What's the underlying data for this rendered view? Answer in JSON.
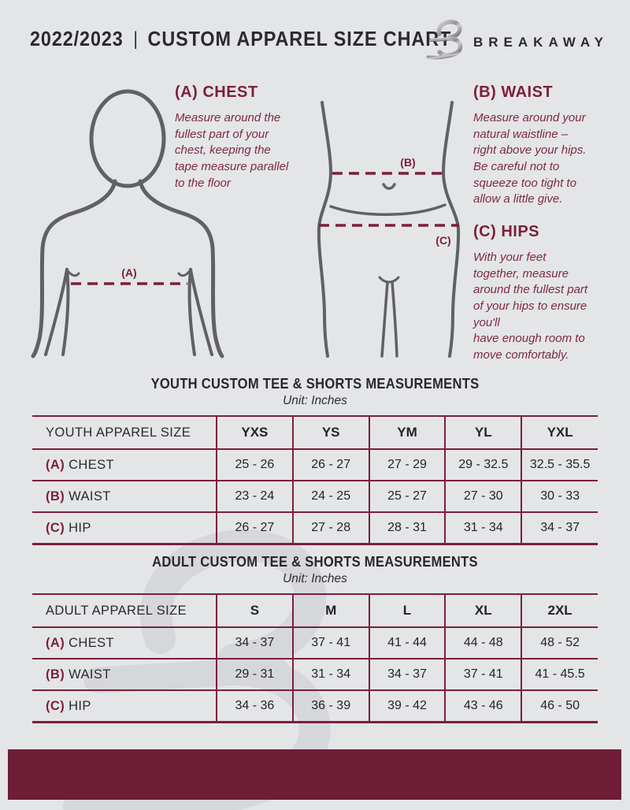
{
  "colors": {
    "accent": "#7b1f3d",
    "footer": "#6e1d37",
    "background": "#e4e5e7",
    "figure_stroke": "#606164",
    "watermark": "#d6d7da",
    "text_dark": "#2b2b2d"
  },
  "header": {
    "year": "2022/2023",
    "separator": "|",
    "title": "CUSTOM APPAREL SIZE CHART",
    "brand": "BREAKAWAY"
  },
  "guide": {
    "chest": {
      "heading": "(A) CHEST",
      "body": "Measure around the\nfullest part of your\nchest, keeping the\ntape measure parallel\nto the floor",
      "marker": "(A)"
    },
    "waist": {
      "heading": "(B) WAIST",
      "body": "Measure around your\nnatural waistline –\nright above your hips.\nBe careful not to\nsqueeze too tight to\nallow a little give.",
      "marker": "(B)"
    },
    "hips": {
      "heading": "(C) HIPS",
      "body": "With your feet\ntogether, measure\naround the fullest part\nof your hips to ensure\nyou'll\nhave enough room to\nmove comfortably.",
      "marker": "(C)"
    }
  },
  "tables": {
    "youth": {
      "title": "YOUTH CUSTOM TEE & SHORTS MEASUREMENTS",
      "unit": "Unit: Inches",
      "size_header": "YOUTH APPAREL SIZE",
      "sizes": [
        "YXS",
        "YS",
        "YM",
        "YL",
        "YXL"
      ],
      "rows": [
        {
          "prefix": "(A)",
          "label": "CHEST",
          "values": [
            "25 - 26",
            "26 - 27",
            "27 - 29",
            "29 - 32.5",
            "32.5 - 35.5"
          ]
        },
        {
          "prefix": "(B)",
          "label": "WAIST",
          "values": [
            "23 - 24",
            "24 - 25",
            "25 - 27",
            "27 - 30",
            "30 - 33"
          ]
        },
        {
          "prefix": "(C)",
          "label": "HIP",
          "values": [
            "26 - 27",
            "27 - 28",
            "28 - 31",
            "31 - 34",
            "34 - 37"
          ]
        }
      ]
    },
    "adult": {
      "title": "ADULT CUSTOM TEE & SHORTS MEASUREMENTS",
      "unit": "Unit: Inches",
      "size_header": "ADULT APPAREL SIZE",
      "sizes": [
        "S",
        "M",
        "L",
        "XL",
        "2XL"
      ],
      "rows": [
        {
          "prefix": "(A)",
          "label": "CHEST",
          "values": [
            "34 - 37",
            "37 - 41",
            "41 - 44",
            "44 - 48",
            "48 - 52"
          ]
        },
        {
          "prefix": "(B)",
          "label": "WAIST",
          "values": [
            "29 - 31",
            "31 - 34",
            "34 - 37",
            "37 - 41",
            "41 - 45.5"
          ]
        },
        {
          "prefix": "(C)",
          "label": "HIP",
          "values": [
            "34 - 36",
            "36 - 39",
            "39 - 42",
            "43 - 46",
            "46 - 50"
          ]
        }
      ]
    }
  }
}
